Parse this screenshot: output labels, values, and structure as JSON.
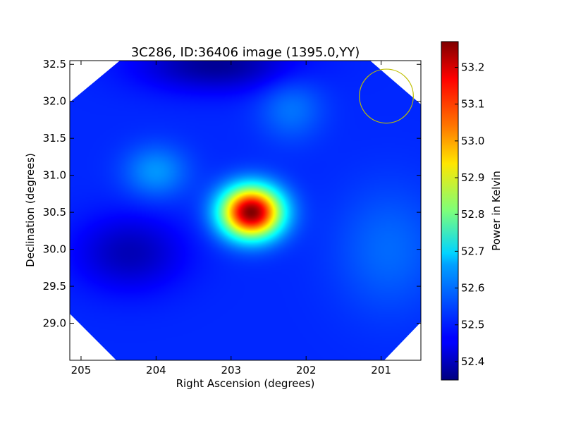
{
  "chart_data": {
    "type": "heatmap",
    "title": "3C286, ID:36406 image (1395.0,YY)",
    "xlabel": "Right Ascension (degrees)",
    "ylabel": "Declination (degrees)",
    "xlim": [
      205.15,
      200.47
    ],
    "ylim": [
      28.5,
      32.55
    ],
    "x_ticks": [
      205,
      204,
      203,
      202,
      201
    ],
    "y_ticks": [
      29.0,
      29.5,
      30.0,
      30.5,
      31.0,
      31.5,
      32.0,
      32.5
    ],
    "x_tick_labels": [
      "205",
      "204",
      "203",
      "202",
      "201"
    ],
    "y_tick_labels": [
      "29.0",
      "29.5",
      "30.0",
      "30.5",
      "31.0",
      "31.5",
      "32.0",
      "32.5"
    ],
    "colorbar": {
      "label": "Power in Kelvin",
      "colormap": "jet",
      "range": [
        52.35,
        53.27
      ],
      "ticks": [
        52.4,
        52.5,
        52.6,
        52.7,
        52.8,
        52.9,
        53.0,
        53.1,
        53.2
      ],
      "tick_labels": [
        "52.4",
        "52.5",
        "52.6",
        "52.7",
        "52.8",
        "52.9",
        "53.0",
        "53.1",
        "53.2"
      ]
    },
    "background_level": 52.5,
    "features": [
      {
        "kind": "peak",
        "ra": 202.73,
        "dec": 30.5,
        "value": 53.27,
        "sigma_ra": 0.28,
        "sigma_dec": 0.24
      },
      {
        "kind": "bump",
        "ra": 204.0,
        "dec": 31.05,
        "value": 52.6,
        "sigma_ra": 0.3,
        "sigma_dec": 0.25
      },
      {
        "kind": "bump",
        "ra": 202.2,
        "dec": 31.9,
        "value": 52.57,
        "sigma_ra": 0.3,
        "sigma_dec": 0.3
      },
      {
        "kind": "bump",
        "ra": 200.9,
        "dec": 30.0,
        "value": 52.56,
        "sigma_ra": 0.5,
        "sigma_dec": 0.6
      },
      {
        "kind": "dip",
        "ra": 204.35,
        "dec": 29.95,
        "value": 52.4,
        "sigma_ra": 0.5,
        "sigma_dec": 0.35
      },
      {
        "kind": "dip",
        "ra": 203.2,
        "dec": 32.5,
        "value": 52.37,
        "sigma_ra": 0.7,
        "sigma_dec": 0.25
      }
    ],
    "beam_circle": {
      "ra": 200.93,
      "dec": 32.07,
      "radius_deg": 0.36,
      "color": "#bfbf00"
    },
    "grid": false
  }
}
